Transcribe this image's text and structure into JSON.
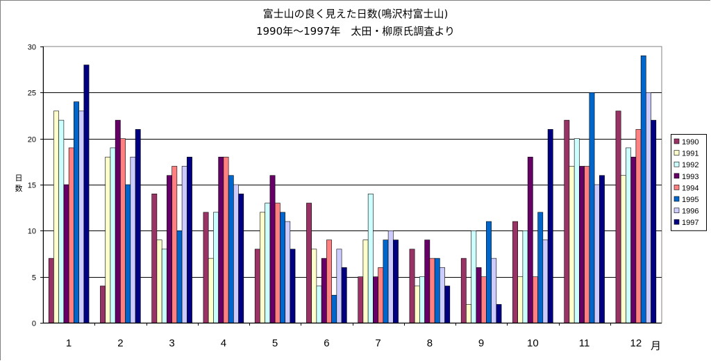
{
  "chart_data": {
    "type": "bar",
    "title": "富士山の良く見えた日数(鳴沢村富士山)",
    "subtitle": "1990年～1997年　太田・柳原氏調査より",
    "ylabel": "日数",
    "xlabel": "月",
    "ylim": [
      0,
      30
    ],
    "yticks": [
      0,
      5,
      10,
      15,
      20,
      25,
      30
    ],
    "categories": [
      "1",
      "2",
      "3",
      "4",
      "5",
      "6",
      "7",
      "8",
      "9",
      "10",
      "11",
      "12"
    ],
    "grid": true,
    "legend_position": "right",
    "series": [
      {
        "name": "1990",
        "color": "#993366",
        "values": [
          7,
          4,
          14,
          12,
          8,
          13,
          5,
          8,
          7,
          11,
          22,
          23
        ]
      },
      {
        "name": "1991",
        "color": "#FFFFCC",
        "values": [
          23,
          18,
          9,
          7,
          12,
          8,
          9,
          4,
          2,
          5,
          17,
          16
        ]
      },
      {
        "name": "1992",
        "color": "#CCFFFF",
        "values": [
          22,
          19,
          8,
          12,
          13,
          4,
          14,
          5,
          10,
          10,
          20,
          19
        ]
      },
      {
        "name": "1993",
        "color": "#660066",
        "values": [
          15,
          22,
          16,
          18,
          16,
          7,
          5,
          9,
          6,
          18,
          17,
          18
        ]
      },
      {
        "name": "1994",
        "color": "#FF8080",
        "values": [
          19,
          20,
          17,
          18,
          13,
          9,
          6,
          7,
          5,
          5,
          17,
          21
        ]
      },
      {
        "name": "1995",
        "color": "#0066CC",
        "values": [
          24,
          15,
          10,
          16,
          12,
          3,
          9,
          7,
          11,
          12,
          25,
          29
        ]
      },
      {
        "name": "1996",
        "color": "#CCCCFF",
        "values": [
          23,
          18,
          17,
          15,
          11,
          8,
          10,
          6,
          7,
          9,
          15,
          25
        ]
      },
      {
        "name": "1997",
        "color": "#000080",
        "values": [
          28,
          21,
          18,
          14,
          8,
          6,
          9,
          4,
          2,
          21,
          16,
          22
        ]
      }
    ]
  }
}
